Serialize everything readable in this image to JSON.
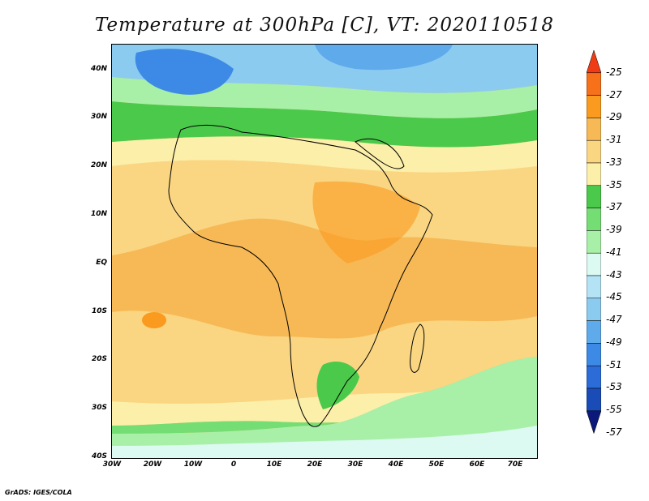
{
  "title": "Temperature at 300hPa [C], VT: 2020110518",
  "credit": "GrADS: IGES/COLA",
  "map": {
    "lat_labels": [
      "40N",
      "30N",
      "20N",
      "10N",
      "EQ",
      "10S",
      "20S",
      "30S",
      "40S"
    ],
    "lon_labels": [
      "30W",
      "20W",
      "10W",
      "0",
      "10E",
      "20E",
      "30E",
      "40E",
      "50E",
      "60E",
      "70E"
    ],
    "lat_range": [
      -40,
      45
    ],
    "lon_range": [
      -30,
      75
    ]
  },
  "colorbar": {
    "labels": [
      "-25",
      "-27",
      "-29",
      "-31",
      "-33",
      "-35",
      "-37",
      "-39",
      "-41",
      "-43",
      "-45",
      "-47",
      "-49",
      "-51",
      "-53",
      "-55",
      "-57"
    ],
    "colors": [
      "#f03c14",
      "#f7701a",
      "#fa9a1e",
      "#f7b955",
      "#fad683",
      "#fcefa9",
      "#4bc94b",
      "#74de74",
      "#a8f0a8",
      "#dcfaf2",
      "#b3e3f5",
      "#8ccbf0",
      "#5faaeb",
      "#3d8ae6",
      "#2b6cd9",
      "#1a4cb8",
      "#0b1a7a"
    ]
  }
}
